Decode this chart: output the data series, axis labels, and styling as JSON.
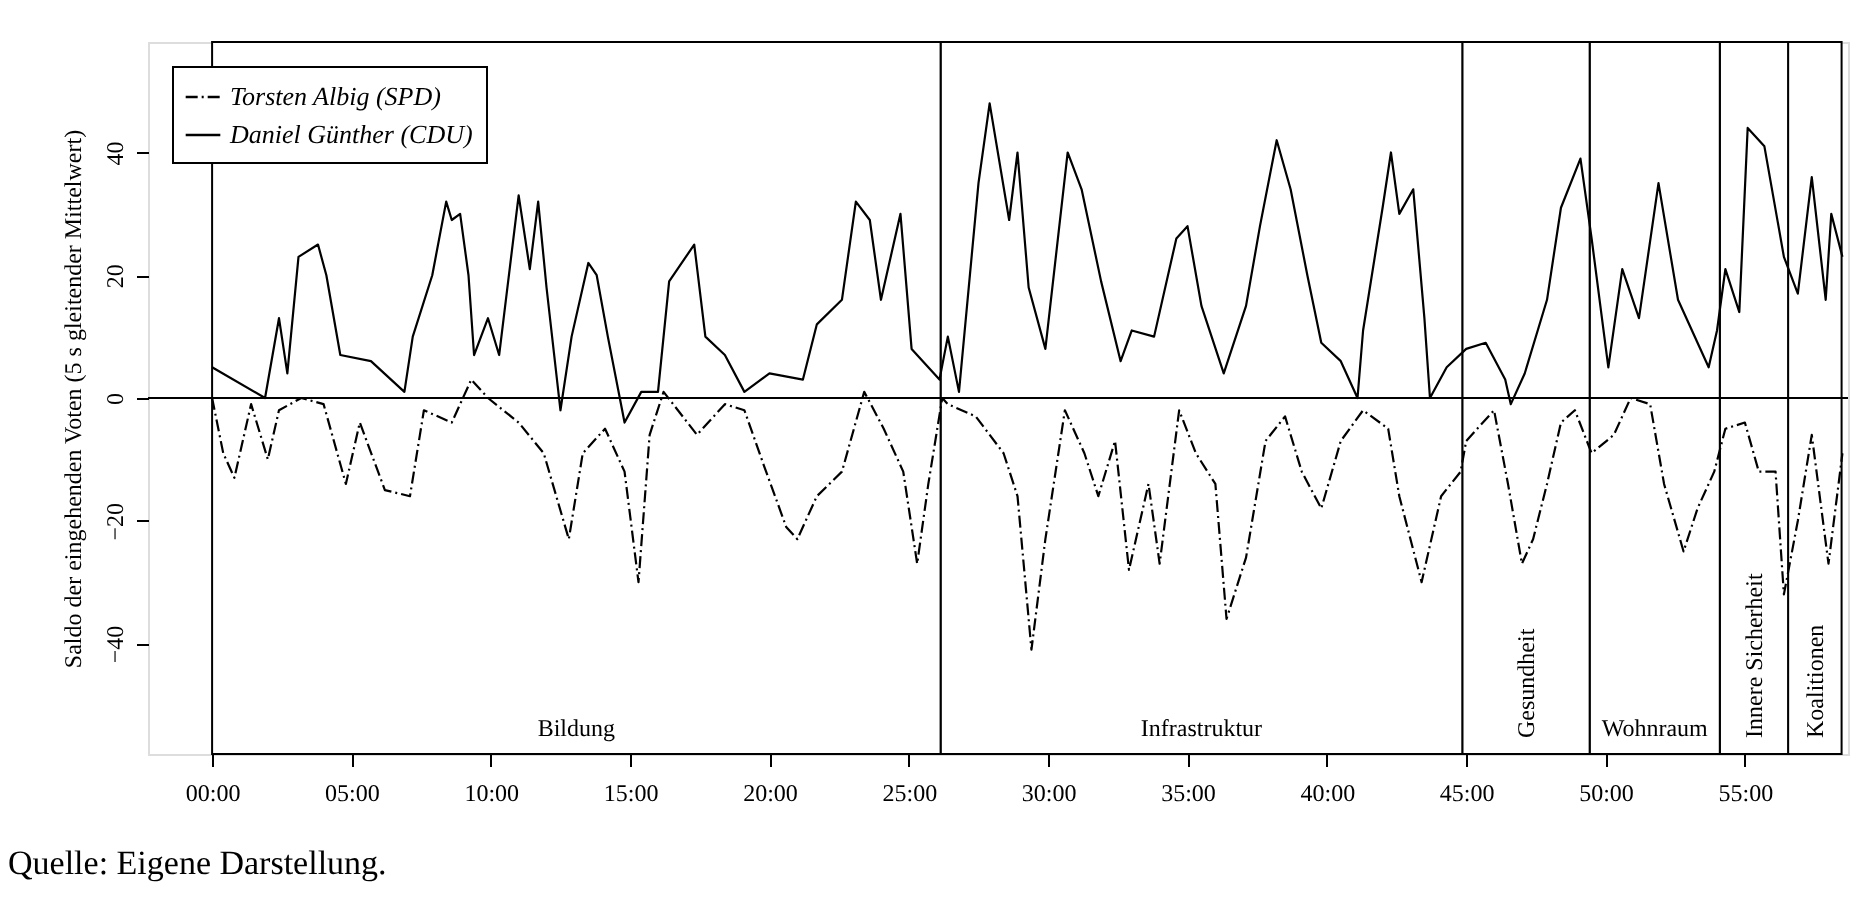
{
  "chart_data": {
    "type": "line",
    "ylabel": "Saldo der eingehenden Voten (5 s gleitender Mittelwert)",
    "annotations": [
      "Quelle: Eigene Darstellung."
    ],
    "xlim": [
      -2.3,
      58.7
    ],
    "ylim": [
      -58,
      58
    ],
    "xticks": [
      {
        "value": 0,
        "label": "00:00"
      },
      {
        "value": 5,
        "label": "05:00"
      },
      {
        "value": 10,
        "label": "10:00"
      },
      {
        "value": 15,
        "label": "15:00"
      },
      {
        "value": 20,
        "label": "20:00"
      },
      {
        "value": 25,
        "label": "25:00"
      },
      {
        "value": 30,
        "label": "30:00"
      },
      {
        "value": 35,
        "label": "35:00"
      },
      {
        "value": 40,
        "label": "40:00"
      },
      {
        "value": 45,
        "label": "45:00"
      },
      {
        "value": 50,
        "label": "50:00"
      },
      {
        "value": 55,
        "label": "55:00"
      }
    ],
    "yticks": [
      -40,
      -20,
      0,
      20,
      40
    ],
    "grid": false,
    "legend": "top left",
    "marker": "none",
    "ref_lines": [
      {
        "axis": "y",
        "value": 0
      }
    ],
    "bands": [
      {
        "axis": "x",
        "from": 0,
        "to": 26.14,
        "label": "Bildung",
        "color": "#ffffff"
      },
      {
        "axis": "x",
        "from": 26.14,
        "to": 44.86,
        "label": "Infrastruktur",
        "color": "#ffffff"
      },
      {
        "axis": "x",
        "from": 44.86,
        "to": 49.43,
        "label": "Gesundheit",
        "color": "#ffffff"
      },
      {
        "axis": "x",
        "from": 49.43,
        "to": 54.1,
        "label": "Wohnraum",
        "color": "#ffffff"
      },
      {
        "axis": "x",
        "from": 54.1,
        "to": 56.55,
        "label": "Innere Sicherheit",
        "color": "#ffffff"
      },
      {
        "axis": "x",
        "from": 56.55,
        "to": 58.47,
        "label": "Koalitionen",
        "color": "#ffffff"
      }
    ],
    "series": [
      {
        "name": "Torsten Albig (SPD)",
        "color": "#000000",
        "line_style": "dashed",
        "x": [
          0,
          0.4,
          0.8,
          1.4,
          2.0,
          2.4,
          3.2,
          4.0,
          4.8,
          5.3,
          6.2,
          7.1,
          7.6,
          8.6,
          9.3,
          9.9,
          11.0,
          11.9,
          12.8,
          13.3,
          14.1,
          14.8,
          15.3,
          15.7,
          16.2,
          17.4,
          18.4,
          19.1,
          19.8,
          20.6,
          21.0,
          21.7,
          22.6,
          23.4,
          24.1,
          24.8,
          25.3,
          25.7,
          26.2,
          26.4,
          27.4,
          28.4,
          28.9,
          29.4,
          29.9,
          30.6,
          31.3,
          31.8,
          32.4,
          32.9,
          33.6,
          34.0,
          34.7,
          35.3,
          36.0,
          36.4,
          37.1,
          37.8,
          38.5,
          39.1,
          39.8,
          40.5,
          41.3,
          42.2,
          42.6,
          43.4,
          44.1,
          44.8,
          45.0,
          46.0,
          46.5,
          47.0,
          47.4,
          47.9,
          48.4,
          48.9,
          49.5,
          50.3,
          50.9,
          51.6,
          52.1,
          52.8,
          53.3,
          53.9,
          54.3,
          55.0,
          55.5,
          56.1,
          56.4,
          56.9,
          57.4,
          58.0,
          58.5
        ],
        "values": [
          0,
          -9,
          -13,
          -1,
          -10,
          -2,
          0,
          -1,
          -14,
          -4,
          -15,
          -16,
          -2,
          -4,
          3,
          0,
          -4,
          -9,
          -23,
          -9,
          -5,
          -12,
          -30,
          -6,
          1,
          -6,
          -1,
          -2,
          -11,
          -21,
          -23,
          -16,
          -12,
          1,
          -5,
          -12,
          -27,
          -14,
          0,
          -1,
          -3,
          -9,
          -16,
          -41,
          -23,
          -2,
          -9,
          -16,
          -7,
          -28,
          -14,
          -27,
          -2,
          -9,
          -14,
          -36,
          -26,
          -7,
          -3,
          -12,
          -18,
          -7,
          -2,
          -5,
          -16,
          -30,
          -16,
          -12,
          -7,
          -2,
          -14,
          -27,
          -23,
          -14,
          -4,
          -2,
          -9,
          -6,
          0,
          -1,
          -14,
          -25,
          -18,
          -12,
          -5,
          -4,
          -12,
          -12,
          -32,
          -20,
          -6,
          -27,
          -9
        ]
      },
      {
        "name": "Daniel Günther (CDU)",
        "color": "#000000",
        "line_style": "solid",
        "x": [
          0,
          1.9,
          2.4,
          2.7,
          3.1,
          3.8,
          4.1,
          4.6,
          5.7,
          6.9,
          7.2,
          7.9,
          8.4,
          8.6,
          8.9,
          9.2,
          9.4,
          9.9,
          10.3,
          11.0,
          11.4,
          11.7,
          12.0,
          12.5,
          12.9,
          13.5,
          13.8,
          14.2,
          14.8,
          15.4,
          16.0,
          16.4,
          17.3,
          17.7,
          18.4,
          19.1,
          20.0,
          21.2,
          21.7,
          22.6,
          23.1,
          23.6,
          24.0,
          24.7,
          25.1,
          26.1,
          26.4,
          26.8,
          27.5,
          27.9,
          28.6,
          28.9,
          29.3,
          29.9,
          30.7,
          31.2,
          31.9,
          32.6,
          33.0,
          33.8,
          34.6,
          35.0,
          35.5,
          36.3,
          37.1,
          37.6,
          38.2,
          38.7,
          39.3,
          39.8,
          40.5,
          41.1,
          41.3,
          42.0,
          42.3,
          42.6,
          43.1,
          43.5,
          43.7,
          44.3,
          45.0,
          45.7,
          46.4,
          46.6,
          47.1,
          47.9,
          48.4,
          49.1,
          49.5,
          50.1,
          50.6,
          51.2,
          51.9,
          52.6,
          53.7,
          54.0,
          54.3,
          54.8,
          55.1,
          55.7,
          56.4,
          56.9,
          57.4,
          57.9,
          58.1,
          58.5
        ],
        "values": [
          5,
          0,
          13,
          4,
          23,
          25,
          20,
          7,
          6,
          1,
          10,
          20,
          32,
          29,
          30,
          20,
          7,
          13,
          7,
          33,
          21,
          32,
          18,
          -2,
          10,
          22,
          20,
          10,
          -4,
          1,
          1,
          19,
          25,
          10,
          7,
          1,
          4,
          3,
          12,
          16,
          32,
          29,
          16,
          30,
          8,
          3,
          10,
          1,
          35,
          48,
          29,
          40,
          18,
          8,
          40,
          34,
          19,
          6,
          11,
          10,
          26,
          28,
          15,
          4,
          15,
          28,
          42,
          34,
          20,
          9,
          6,
          0,
          11,
          31,
          40,
          30,
          34,
          13,
          0,
          5,
          8,
          9,
          3,
          -1,
          4,
          16,
          31,
          39,
          26,
          5,
          21,
          13,
          35,
          16,
          5,
          11,
          21,
          14,
          44,
          41,
          23,
          17,
          36,
          16,
          30,
          23
        ]
      }
    ]
  }
}
